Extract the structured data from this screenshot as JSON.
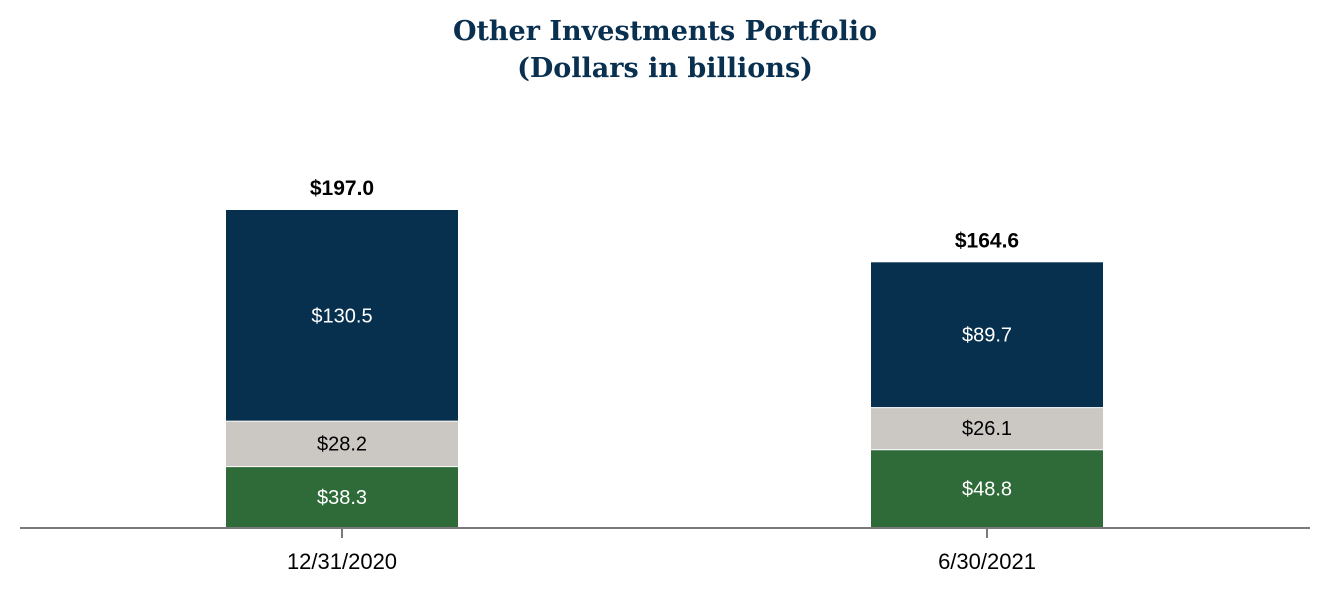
{
  "chart_data": {
    "type": "bar",
    "stacked": true,
    "title": "Other Investments Portfolio",
    "subtitle": "(Dollars in billions)",
    "categories": [
      "12/31/2020",
      "6/30/2021"
    ],
    "series": [
      {
        "values": [
          38.3,
          48.8
        ],
        "labels": [
          "$38.3",
          "$48.8"
        ],
        "color": "#2e6b38",
        "label_color": "#ffffff"
      },
      {
        "values": [
          28.2,
          26.1
        ],
        "labels": [
          "$28.2",
          "$26.1"
        ],
        "color": "#cbc8c3",
        "label_color": "#000000"
      },
      {
        "values": [
          130.5,
          89.7
        ],
        "labels": [
          "$130.5",
          "$89.7"
        ],
        "color": "#07304e",
        "label_color": "#ffffff"
      }
    ],
    "totals": [
      197.0,
      164.6
    ],
    "total_labels": [
      "$197.0",
      "$164.6"
    ],
    "legend": "none",
    "grid": false,
    "y_axis": "hidden"
  }
}
